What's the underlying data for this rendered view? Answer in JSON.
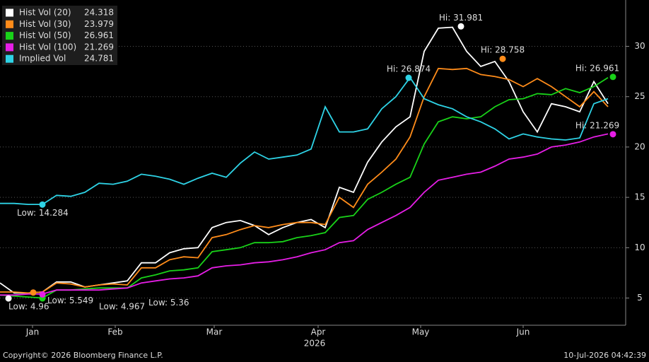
{
  "chart_data": {
    "type": "line",
    "x": [
      0,
      1,
      2,
      3,
      4,
      5,
      6,
      7,
      8,
      9,
      10,
      11,
      12,
      13,
      14,
      15,
      16,
      17,
      18,
      19,
      20,
      21,
      22,
      23,
      24,
      25,
      26,
      27,
      28,
      29,
      30,
      31,
      32,
      33,
      34,
      35,
      36,
      37,
      38,
      39,
      40,
      41,
      42,
      43
    ],
    "xlim": [
      0,
      44.25
    ],
    "xticks": [
      {
        "value": 2.3,
        "label": "Jan"
      },
      {
        "value": 8.15,
        "label": "Feb"
      },
      {
        "value": 15.15,
        "label": "Mar"
      },
      {
        "value": 22.5,
        "label": "Apr"
      },
      {
        "value": 29.75,
        "label": "May"
      },
      {
        "value": 37,
        "label": "Jun"
      }
    ],
    "year_label": "2026",
    "ylim": [
      2.3,
      34.6
    ],
    "yticks": [
      5,
      10,
      15,
      20,
      25,
      30
    ],
    "grid": true,
    "legend": "top-left",
    "series": [
      {
        "name": "Hist Vol (20)",
        "last": 24.318,
        "color": "#ffffff",
        "values": [
          6.5,
          5.5,
          5.5,
          5.6,
          6.6,
          6.6,
          6.1,
          6.3,
          6.5,
          6.7,
          8.5,
          8.5,
          9.5,
          9.9,
          10.0,
          12.0,
          12.5,
          12.7,
          12.2,
          11.3,
          12.0,
          12.5,
          12.8,
          12.0,
          16.0,
          15.5,
          18.5,
          20.5,
          22.0,
          23.0,
          29.5,
          31.8,
          31.9,
          29.5,
          28.0,
          28.5,
          26.5,
          23.5,
          21.5,
          24.3,
          24.0,
          23.5,
          26.5,
          24.3
        ]
      },
      {
        "name": "Hist Vol (30)",
        "last": 23.979,
        "color": "#ff8c1a",
        "values": [
          5.6,
          5.6,
          5.5,
          5.6,
          6.5,
          6.4,
          6.1,
          6.3,
          6.4,
          6.3,
          8.0,
          8.0,
          8.8,
          9.1,
          9.0,
          11.0,
          11.3,
          11.8,
          12.2,
          12.0,
          12.3,
          12.5,
          12.5,
          12.3,
          15.0,
          14.0,
          16.3,
          17.5,
          18.8,
          21.0,
          25.0,
          27.8,
          27.7,
          27.8,
          27.2,
          27.0,
          26.7,
          26.0,
          26.8,
          26.0,
          25.0,
          24.0,
          25.5,
          24.0
        ]
      },
      {
        "name": "Hist Vol (50)",
        "last": 26.961,
        "color": "#19d219",
        "values": [
          5.3,
          5.2,
          5.1,
          5.0,
          5.8,
          5.8,
          5.9,
          6.0,
          6.0,
          6.0,
          7.0,
          7.3,
          7.7,
          7.8,
          8.0,
          9.6,
          9.8,
          10.0,
          10.5,
          10.5,
          10.6,
          11.0,
          11.2,
          11.5,
          13.0,
          13.2,
          14.8,
          15.5,
          16.3,
          17.0,
          20.3,
          22.5,
          23.0,
          22.8,
          23.0,
          24.0,
          24.7,
          24.8,
          25.3,
          25.2,
          25.8,
          25.4,
          26.0,
          26.9
        ]
      },
      {
        "name": "Hist Vol (100)",
        "last": 21.269,
        "color": "#e61ee6",
        "values": [
          5.3,
          5.3,
          5.4,
          5.4,
          5.8,
          5.8,
          5.8,
          5.8,
          5.9,
          6.0,
          6.5,
          6.7,
          6.9,
          7.0,
          7.2,
          8.0,
          8.2,
          8.3,
          8.5,
          8.6,
          8.8,
          9.1,
          9.5,
          9.8,
          10.5,
          10.7,
          11.8,
          12.5,
          13.2,
          14.0,
          15.5,
          16.7,
          17.0,
          17.3,
          17.5,
          18.1,
          18.8,
          19.0,
          19.3,
          20.0,
          20.2,
          20.5,
          21.0,
          21.3
        ]
      },
      {
        "name": "Implied Vol",
        "last": 24.781,
        "color": "#2ed3e6",
        "values": [
          14.4,
          14.4,
          14.3,
          14.3,
          15.2,
          15.1,
          15.5,
          16.4,
          16.3,
          16.6,
          17.3,
          17.1,
          16.8,
          16.3,
          16.9,
          17.4,
          17.0,
          18.4,
          19.5,
          18.8,
          19.0,
          19.2,
          19.8,
          24.0,
          21.5,
          21.5,
          21.8,
          23.8,
          25.0,
          26.9,
          24.8,
          24.2,
          23.8,
          23.0,
          22.5,
          21.8,
          20.8,
          21.3,
          21.0,
          20.8,
          20.7,
          20.9,
          24.3,
          24.8
        ]
      }
    ],
    "annotations": [
      {
        "label": "Hi: 31.981",
        "x": 32.6,
        "value": 31.981,
        "series": 0
      },
      {
        "label": "Low: 4.96",
        "x": 0.6,
        "value": 4.96,
        "series": 0
      },
      {
        "label": "Hi: 28.758",
        "x": 35.55,
        "value": 28.758,
        "series": 1
      },
      {
        "label": "Low: 5.549",
        "x": 2.35,
        "value": 5.549,
        "series": 1
      },
      {
        "label": "Hi: 26.961",
        "x": 43.35,
        "value": 26.961,
        "series": 2
      },
      {
        "label": "Low: 4.967",
        "x": 3.0,
        "value": 4.967,
        "series": 2
      },
      {
        "label": "Hi: 21.269",
        "x": 43.35,
        "value": 21.269,
        "series": 3
      },
      {
        "label": "Low: 5.36",
        "x": 3.0,
        "value": 5.36,
        "series": 3
      },
      {
        "label": "Hi: 26.874",
        "x": 28.9,
        "value": 26.874,
        "series": 4
      },
      {
        "label": "Low: 14.284",
        "x": 3.0,
        "value": 14.284,
        "series": 4
      }
    ],
    "footer_left": "Copyright© 2026 Bloomberg Finance L.P.",
    "footer_right": "10-Jul-2026 04:42:39"
  }
}
